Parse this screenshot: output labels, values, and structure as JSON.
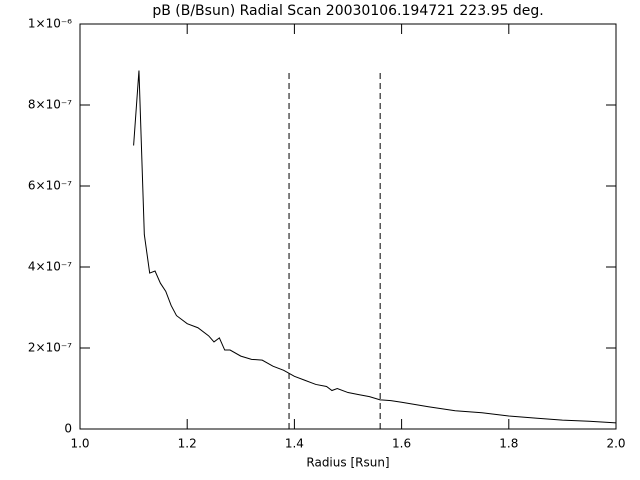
{
  "chart_data": {
    "type": "line",
    "title": "pB (B/Bsun) Radial Scan 20030106.194721 223.95 deg.",
    "x_label": "Radius [Rsun]",
    "x": [
      1.1,
      1.11,
      1.12,
      1.13,
      1.14,
      1.15,
      1.16,
      1.17,
      1.18,
      1.19,
      1.2,
      1.22,
      1.24,
      1.25,
      1.26,
      1.27,
      1.28,
      1.3,
      1.32,
      1.34,
      1.36,
      1.38,
      1.4,
      1.42,
      1.44,
      1.46,
      1.47,
      1.48,
      1.5,
      1.52,
      1.54,
      1.56,
      1.58,
      1.6,
      1.65,
      1.7,
      1.75,
      1.8,
      1.85,
      1.9,
      1.95,
      2.0
    ],
    "series": [
      {
        "color": "#000000",
        "values": [
          7e-07,
          8.85e-07,
          4.8e-07,
          3.85e-07,
          3.9e-07,
          3.6e-07,
          3.4e-07,
          3.05e-07,
          2.8e-07,
          2.7e-07,
          2.6e-07,
          2.5e-07,
          2.3e-07,
          2.15e-07,
          2.25e-07,
          1.95e-07,
          1.95e-07,
          1.8e-07,
          1.72e-07,
          1.7e-07,
          1.55e-07,
          1.45e-07,
          1.3e-07,
          1.2e-07,
          1.1e-07,
          1.05e-07,
          9.5e-08,
          1e-07,
          9e-08,
          8.5e-08,
          8e-08,
          7.2e-08,
          7e-08,
          6.6e-08,
          5.5e-08,
          4.5e-08,
          4e-08,
          3.2e-08,
          2.7e-08,
          2.2e-08,
          1.9e-08,
          1.5e-08
        ]
      }
    ],
    "vlines": [
      1.39,
      1.56
    ],
    "xlim": [
      1.0,
      2.0
    ],
    "xticks": [
      {
        "value": 1.0,
        "label": "1.0"
      },
      1.2,
      1.4,
      1.6,
      1.8,
      {
        "value": 2.0,
        "label": "2.0"
      }
    ],
    "ylim": [
      0,
      1e-06
    ],
    "yticks": [
      0,
      {
        "value": 2e-07,
        "label": "2×10⁻⁷"
      },
      {
        "value": 4e-07,
        "label": "4×10⁻⁷"
      },
      {
        "value": 6e-07,
        "label": "6×10⁻⁷"
      },
      {
        "value": 8e-07,
        "label": "8×10⁻⁷"
      },
      {
        "value": 1e-06,
        "label": "1×10⁻⁶"
      }
    ]
  }
}
